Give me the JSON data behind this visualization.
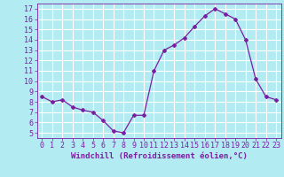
{
  "x": [
    0,
    1,
    2,
    3,
    4,
    5,
    6,
    7,
    8,
    9,
    10,
    11,
    12,
    13,
    14,
    15,
    16,
    17,
    18,
    19,
    20,
    21,
    22,
    23
  ],
  "y": [
    8.5,
    8.0,
    8.2,
    7.5,
    7.2,
    7.0,
    6.2,
    5.2,
    5.0,
    6.7,
    6.7,
    11.0,
    13.0,
    13.5,
    14.2,
    15.3,
    16.3,
    17.0,
    16.5,
    16.0,
    14.0,
    10.2,
    8.5,
    8.2
  ],
  "line_color": "#7b1fa2",
  "marker": "D",
  "marker_size": 2.0,
  "bg_color": "#b2ebf2",
  "grid_color": "#ffffff",
  "xlabel": "Windchill (Refroidissement éolien,°C)",
  "xlabel_color": "#7b1fa2",
  "tick_color": "#7b1fa2",
  "ylim": [
    4.5,
    17.5
  ],
  "xlim": [
    -0.5,
    23.5
  ],
  "yticks": [
    5,
    6,
    7,
    8,
    9,
    10,
    11,
    12,
    13,
    14,
    15,
    16,
    17
  ],
  "xticks": [
    0,
    1,
    2,
    3,
    4,
    5,
    6,
    7,
    8,
    9,
    10,
    11,
    12,
    13,
    14,
    15,
    16,
    17,
    18,
    19,
    20,
    21,
    22,
    23
  ],
  "spine_color": "#7b1fa2",
  "label_fontsize": 6.5,
  "tick_fontsize": 6.0,
  "linewidth": 0.9
}
